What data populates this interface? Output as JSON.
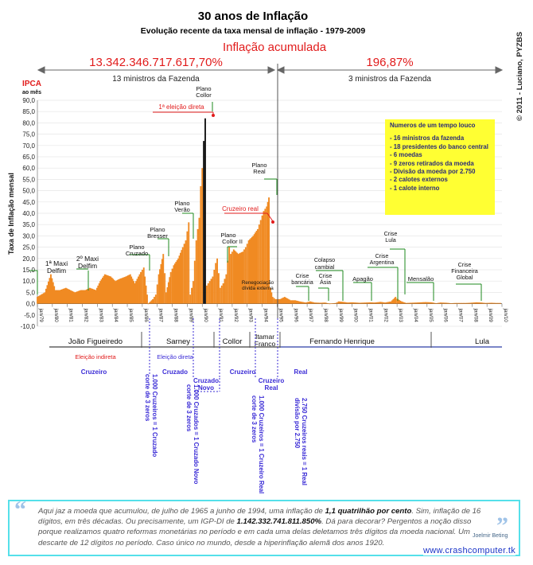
{
  "header": {
    "title": "30 anos de Inflação",
    "subtitle": "Evolução recente da taxa mensal de inflação - 1979-2009",
    "acc_label": "Inflação acumulada",
    "period1_value": "13.342.346.717.617,70%",
    "period1_ministers": "13 ministros da Fazenda",
    "period2_value": "196,87%",
    "period2_ministers": "3 ministros da Fazenda",
    "copyright": "© 2011 - Luciano, PYZBS"
  },
  "colors": {
    "bar": "#f08a22",
    "bar_dark": "#000000",
    "red": "#e11b1b",
    "green": "#1e8a1e",
    "blue": "#3a2bd6",
    "facts_bg": "#ffff33"
  },
  "axes": {
    "ipca_label": "IPCA",
    "ipca_sub": "ao mês",
    "ylabel": "Taxa de Inflação mensal",
    "y_ticks": [
      "90,0",
      "85,0",
      "80,0",
      "75,0",
      "70,0",
      "65,0",
      "60,0",
      "55,0",
      "50,0",
      "45,0",
      "40,0",
      "35,0",
      "30,0",
      "25,0",
      "20,0",
      "15,0",
      "10,0",
      "5,0",
      "0,0",
      "-5,0",
      "-10,0"
    ],
    "x_ticks": [
      "jan/79",
      "jan/80",
      "jan/81",
      "jan/82",
      "jan/83",
      "jan/84",
      "jan/85",
      "jan/86",
      "jan/87",
      "jan/88",
      "jan/89",
      "jan/90",
      "jan/91",
      "jan/92",
      "jan/93",
      "jan/94",
      "jan/95",
      "jan/96",
      "jan/97",
      "jan/98",
      "jan/99",
      "jan/00",
      "jan/01",
      "jan/02",
      "jan/03",
      "jan/04",
      "jan/05",
      "jan/06",
      "jan/07",
      "jan/08",
      "jan/09",
      "jan/10"
    ]
  },
  "annotations": {
    "maxi1": "1ª Maxi Delfim",
    "maxi2": "2º Maxi Delfim",
    "cruzado": "Plano Cruzado",
    "bresser": "Plano Bresser",
    "verao": "Plano Verão",
    "collor": "Plano Collor",
    "eleicao": "1ª eleição direta",
    "collor2": "Plano Collor II",
    "real": "Plano Real",
    "cruzeiro_real": "Cruzeiro real",
    "renegociacao": "Renegociação dívida externa",
    "crise_bancaria": "Crise bancária",
    "crise_asia": "Crise Ásia",
    "colapso": "Colapso cambial",
    "apagao": "Apagão",
    "argentina": "Crise Argentina",
    "lula_crise": "Crise Lula",
    "mensalao": "Mensalão",
    "financeira": "Crise Financeira Global"
  },
  "facts": {
    "title": "Numeros de um tempo louco",
    "items": [
      "- 16 ministros da fazenda",
      "- 18 presidentes do banco central",
      "- 6 moedas",
      "- 9 zeros retirados da moeda",
      "- Divisão da moeda por 2.750",
      "- 2 calotes externos",
      "- 1 calote interno"
    ]
  },
  "presidents": [
    "João Figueiredo",
    "Sarney",
    "Collor",
    "Itamar Franco",
    "Fernando Henrique",
    "Lula"
  ],
  "elections": {
    "indireta": "Eleição indireta",
    "direta": "Eleição direta"
  },
  "currencies": [
    "Cruzeiro",
    "Cruzado",
    "Cruzado Novo",
    "Cruzeiro",
    "Cruzeiro Real",
    "Real"
  ],
  "cuts": [
    "corte de 3 zeros 1.000 Cruzeiros = 1 Cruzado",
    "corte de 3 zeros 1.000 Cruzados = 1 Cruzado Novo",
    "corte de 3 zeros 1.000 Cruzeiros = 1 Cruzeiro Real",
    "divisão por 2.750 2.750 Cruzeiros reais = 1 Real"
  ],
  "quote": {
    "p1": "Aqui jaz a moeda que acumulou, de julho de 1965 a junho de 1994, uma inflação de ",
    "b1": "1,1 quatrilhão por cento",
    "p2": ". Sim, inflação de 16 dígitos, em três décadas. Ou precisamente, um IGP-DI de ",
    "b2": "1.142.332.741.811.850%",
    "p3": ". Dá para decorar? Pergentos a noção disso porque realizamos quatro reformas monetárias no período e em cada uma delas deletamos três dígitos da moeda nacional. Um descarte de 12 dígitos no período. Caso único no mundo, desde a hiperinflação alemã dos anos 1920.",
    "author": "Joelmir Beting"
  },
  "site": "www.crashcomputer.tk",
  "chart_data": {
    "type": "bar",
    "title": "30 anos de Inflação",
    "ylabel": "Taxa de Inflação mensal",
    "ylim": [
      -10,
      90
    ],
    "x_start_year": 1979,
    "series": [
      {
        "name": "IPCA ao mês",
        "points": [
          [
            1979.0,
            3
          ],
          [
            1979.5,
            5
          ],
          [
            1979.9,
            13
          ],
          [
            1980.2,
            6
          ],
          [
            1980.5,
            6
          ],
          [
            1980.9,
            7
          ],
          [
            1981.2,
            6
          ],
          [
            1981.5,
            5
          ],
          [
            1981.9,
            6
          ],
          [
            1982.2,
            6
          ],
          [
            1982.5,
            7
          ],
          [
            1982.9,
            6
          ],
          [
            1983.2,
            10
          ],
          [
            1983.5,
            13
          ],
          [
            1983.9,
            12
          ],
          [
            1984.2,
            10
          ],
          [
            1984.5,
            11
          ],
          [
            1984.9,
            12
          ],
          [
            1985.2,
            13
          ],
          [
            1985.5,
            9
          ],
          [
            1985.9,
            14
          ],
          [
            1986.1,
            16
          ],
          [
            1986.4,
            0
          ],
          [
            1986.7,
            2
          ],
          [
            1986.9,
            4
          ],
          [
            1987.1,
            13
          ],
          [
            1987.4,
            22
          ],
          [
            1987.6,
            5
          ],
          [
            1987.9,
            14
          ],
          [
            1988.1,
            17
          ],
          [
            1988.4,
            20
          ],
          [
            1988.7,
            25
          ],
          [
            1988.9,
            28
          ],
          [
            1989.1,
            36
          ],
          [
            1989.2,
            4
          ],
          [
            1989.4,
            10
          ],
          [
            1989.6,
            28
          ],
          [
            1989.8,
            38
          ],
          [
            1989.9,
            52
          ],
          [
            1990.0,
            60
          ],
          [
            1990.1,
            72
          ],
          [
            1990.2,
            82
          ],
          [
            1990.3,
            8
          ],
          [
            1990.5,
            10
          ],
          [
            1990.7,
            12
          ],
          [
            1990.9,
            18
          ],
          [
            1991.0,
            20
          ],
          [
            1991.2,
            7
          ],
          [
            1991.4,
            9
          ],
          [
            1991.6,
            13
          ],
          [
            1991.8,
            25
          ],
          [
            1991.9,
            22
          ],
          [
            1992.1,
            24
          ],
          [
            1992.4,
            22
          ],
          [
            1992.7,
            23
          ],
          [
            1992.9,
            25
          ],
          [
            1993.1,
            28
          ],
          [
            1993.4,
            30
          ],
          [
            1993.7,
            33
          ],
          [
            1993.9,
            37
          ],
          [
            1994.1,
            41
          ],
          [
            1994.3,
            43
          ],
          [
            1994.45,
            47
          ],
          [
            1994.55,
            7
          ],
          [
            1994.7,
            3
          ],
          [
            1994.9,
            2
          ],
          [
            1995.2,
            2
          ],
          [
            1995.5,
            3
          ],
          [
            1995.9,
            1.5
          ],
          [
            1996.2,
            1.5
          ],
          [
            1996.5,
            1
          ],
          [
            1996.9,
            0.5
          ],
          [
            1997.2,
            1
          ],
          [
            1997.5,
            0.5
          ],
          [
            1997.9,
            0.4
          ],
          [
            1998.2,
            0.5
          ],
          [
            1998.5,
            0
          ],
          [
            1998.9,
            0.3
          ],
          [
            1999.1,
            1
          ],
          [
            1999.4,
            0.8
          ],
          [
            1999.7,
            0.5
          ],
          [
            2000.0,
            0.6
          ],
          [
            2000.5,
            0.4
          ],
          [
            2000.9,
            0.5
          ],
          [
            2001.2,
            0.6
          ],
          [
            2001.5,
            0.5
          ],
          [
            2001.9,
            0.8
          ],
          [
            2002.2,
            0.5
          ],
          [
            2002.6,
            1
          ],
          [
            2002.9,
            3
          ],
          [
            2003.0,
            2.2
          ],
          [
            2003.3,
            1
          ],
          [
            2003.6,
            0.3
          ],
          [
            2003.9,
            0.4
          ],
          [
            2004.3,
            0.5
          ],
          [
            2004.6,
            0.6
          ],
          [
            2004.9,
            0.7
          ],
          [
            2005.3,
            0.6
          ],
          [
            2005.6,
            0.2
          ],
          [
            2005.9,
            0.5
          ],
          [
            2006.3,
            0.4
          ],
          [
            2006.6,
            0.2
          ],
          [
            2006.9,
            0.3
          ],
          [
            2007.3,
            0.3
          ],
          [
            2007.6,
            0.3
          ],
          [
            2007.9,
            0.4
          ],
          [
            2008.3,
            0.6
          ],
          [
            2008.6,
            0.5
          ],
          [
            2008.9,
            0.3
          ],
          [
            2009.3,
            0.4
          ],
          [
            2009.6,
            0.3
          ],
          [
            2009.9,
            0.3
          ]
        ]
      }
    ]
  }
}
